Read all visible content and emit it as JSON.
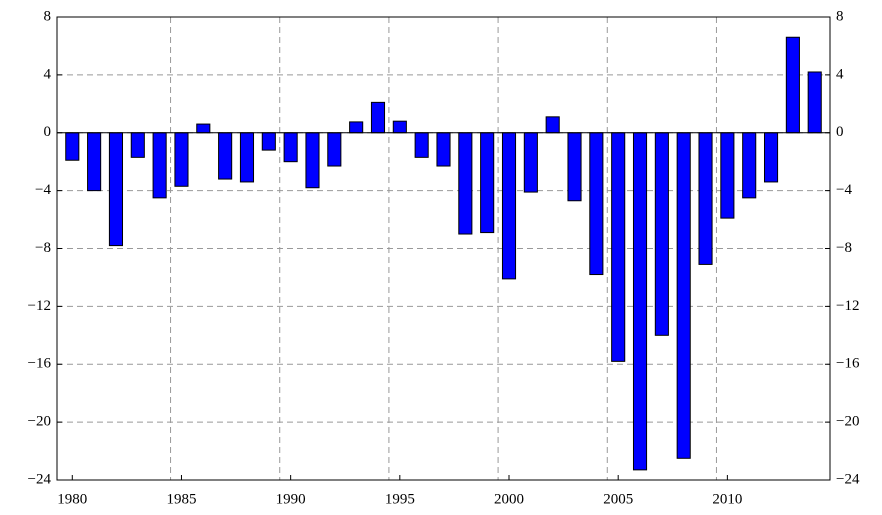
{
  "chart_data": {
    "type": "bar",
    "x": [
      1980,
      1981,
      1982,
      1983,
      1984,
      1985,
      1986,
      1987,
      1988,
      1989,
      1990,
      1991,
      1992,
      1993,
      1994,
      1995,
      1996,
      1997,
      1998,
      1999,
      2000,
      2001,
      2002,
      2003,
      2004,
      2005,
      2006,
      2007,
      2008,
      2009,
      2010,
      2011,
      2012,
      2013,
      2014
    ],
    "values": [
      -1.9,
      -4.0,
      -7.8,
      -1.7,
      -4.5,
      -3.7,
      0.6,
      -3.2,
      -3.4,
      -1.2,
      -2.0,
      -3.8,
      -2.3,
      0.75,
      2.1,
      0.8,
      -1.7,
      -2.3,
      -7.0,
      -6.9,
      -10.1,
      -4.1,
      1.1,
      -4.7,
      -9.8,
      -15.8,
      -23.3,
      -14.0,
      -22.5,
      -9.1,
      -5.9,
      -4.5,
      -3.4,
      6.6,
      4.2
    ],
    "color": "#0000ff",
    "xlim": [
      1979.3,
      2014.7
    ],
    "xticks": [
      1980,
      1985,
      1990,
      1995,
      2000,
      2005,
      2010
    ],
    "x_grid_lines": [
      1984.5,
      1989.5,
      1994.5,
      1999.5,
      2004.5,
      2009.5
    ],
    "ylim": [
      -24,
      8
    ],
    "yticks": [
      {
        "value": -24,
        "label": "−24"
      },
      {
        "value": -20,
        "label": "−20"
      },
      {
        "value": -16,
        "label": "−16"
      },
      {
        "value": -12,
        "label": "−12"
      },
      {
        "value": -8,
        "label": "−8"
      },
      {
        "value": -4,
        "label": "−4"
      },
      0,
      4,
      8
    ],
    "y2lim": [
      -24,
      8
    ],
    "y2ticks": [
      {
        "value": -24,
        "label": "−24"
      },
      {
        "value": -20,
        "label": "−20"
      },
      {
        "value": -16,
        "label": "−16"
      },
      {
        "value": -12,
        "label": "−12"
      },
      {
        "value": -8,
        "label": "−8"
      },
      {
        "value": -4,
        "label": "−4"
      },
      0,
      4,
      8
    ],
    "grid": true
  }
}
